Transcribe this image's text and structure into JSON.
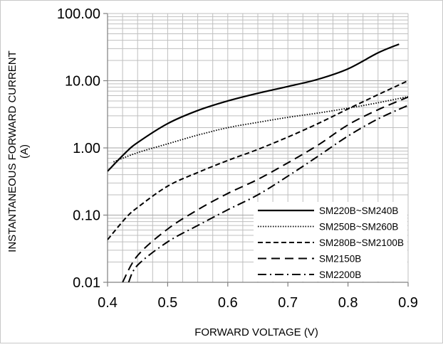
{
  "chart_data": {
    "type": "line",
    "title": "",
    "xlabel": "FORWARD VOLTAGE (V)",
    "ylabel_line1": "INSTANTANEOUS FORWARD CURRENT",
    "ylabel_line2": "(A)",
    "x_scale": "linear",
    "y_scale": "log",
    "xlim": [
      0.4,
      0.9
    ],
    "ylim": [
      0.01,
      100
    ],
    "x_ticks": [
      0.4,
      0.5,
      0.6,
      0.7,
      0.8,
      0.9
    ],
    "x_tick_labels": [
      "0.4",
      "0.5",
      "0.6",
      "0.7",
      "0.8",
      "0.9"
    ],
    "y_ticks": [
      0.01,
      0.1,
      1,
      10,
      100
    ],
    "y_tick_labels": [
      "0.01",
      "0.10",
      "1.00",
      "10.00",
      "100.00"
    ],
    "grid": true,
    "legend_position": "bottom-right",
    "series": [
      {
        "name": "SM220B~SM240B",
        "dash": "solid",
        "x": [
          0.4,
          0.43,
          0.45,
          0.5,
          0.55,
          0.6,
          0.65,
          0.7,
          0.75,
          0.8,
          0.85,
          0.885
        ],
        "y": [
          0.45,
          0.85,
          1.2,
          2.3,
          3.6,
          5.0,
          6.5,
          8.2,
          10.5,
          15.0,
          26.0,
          35.0
        ]
      },
      {
        "name": "SM250B~SM260B",
        "dash": "dotted",
        "x": [
          0.41,
          0.45,
          0.5,
          0.55,
          0.6,
          0.65,
          0.7,
          0.75,
          0.8,
          0.85,
          0.9
        ],
        "y": [
          0.62,
          0.85,
          1.15,
          1.55,
          2.0,
          2.4,
          2.85,
          3.3,
          3.9,
          4.7,
          5.8
        ]
      },
      {
        "name": "SM280B~SM2100B",
        "dash": "dash",
        "x": [
          0.4,
          0.43,
          0.45,
          0.5,
          0.55,
          0.6,
          0.65,
          0.7,
          0.75,
          0.8,
          0.85,
          0.9
        ],
        "y": [
          0.043,
          0.09,
          0.13,
          0.27,
          0.43,
          0.65,
          0.95,
          1.45,
          2.3,
          3.8,
          6.2,
          10.0
        ]
      },
      {
        "name": "SM2150B",
        "dash": "longdash",
        "x": [
          0.425,
          0.45,
          0.5,
          0.55,
          0.6,
          0.65,
          0.7,
          0.75,
          0.8,
          0.85,
          0.9
        ],
        "y": [
          0.01,
          0.025,
          0.062,
          0.12,
          0.21,
          0.34,
          0.6,
          1.1,
          2.2,
          3.7,
          5.7
        ]
      },
      {
        "name": "SM2200B",
        "dash": "dashdot",
        "x": [
          0.435,
          0.45,
          0.5,
          0.55,
          0.6,
          0.65,
          0.7,
          0.75,
          0.8,
          0.85,
          0.9
        ],
        "y": [
          0.01,
          0.018,
          0.04,
          0.07,
          0.12,
          0.2,
          0.38,
          0.75,
          1.5,
          2.7,
          4.3
        ]
      }
    ]
  }
}
